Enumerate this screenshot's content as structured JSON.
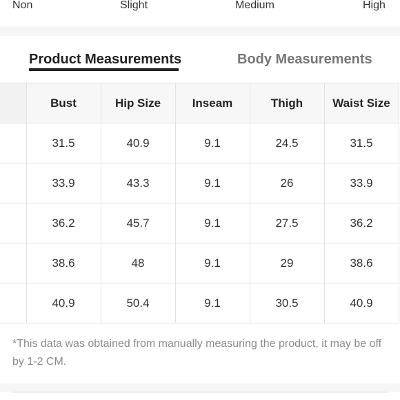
{
  "stretch": {
    "levels": [
      "Non",
      "Slight",
      "Medium",
      "High"
    ]
  },
  "tabs": {
    "product": "Product Measurements",
    "body": "Body Measurements",
    "active": "product"
  },
  "table": {
    "columns": [
      "",
      "Bust",
      "Hip Size",
      "Inseam",
      "Thigh",
      "Waist Size"
    ],
    "rows": [
      [
        "",
        "31.5",
        "40.9",
        "9.1",
        "24.5",
        "31.5"
      ],
      [
        "",
        "33.9",
        "43.3",
        "9.1",
        "26",
        "33.9"
      ],
      [
        "",
        "36.2",
        "45.7",
        "9.1",
        "27.5",
        "36.2"
      ],
      [
        "",
        "38.6",
        "48",
        "9.1",
        "29",
        "38.6"
      ],
      [
        "",
        "40.9",
        "50.4",
        "9.1",
        "30.5",
        "40.9"
      ]
    ]
  },
  "note": "*This data was obtained from manually measuring the product, it may be off by 1-2 CM."
}
